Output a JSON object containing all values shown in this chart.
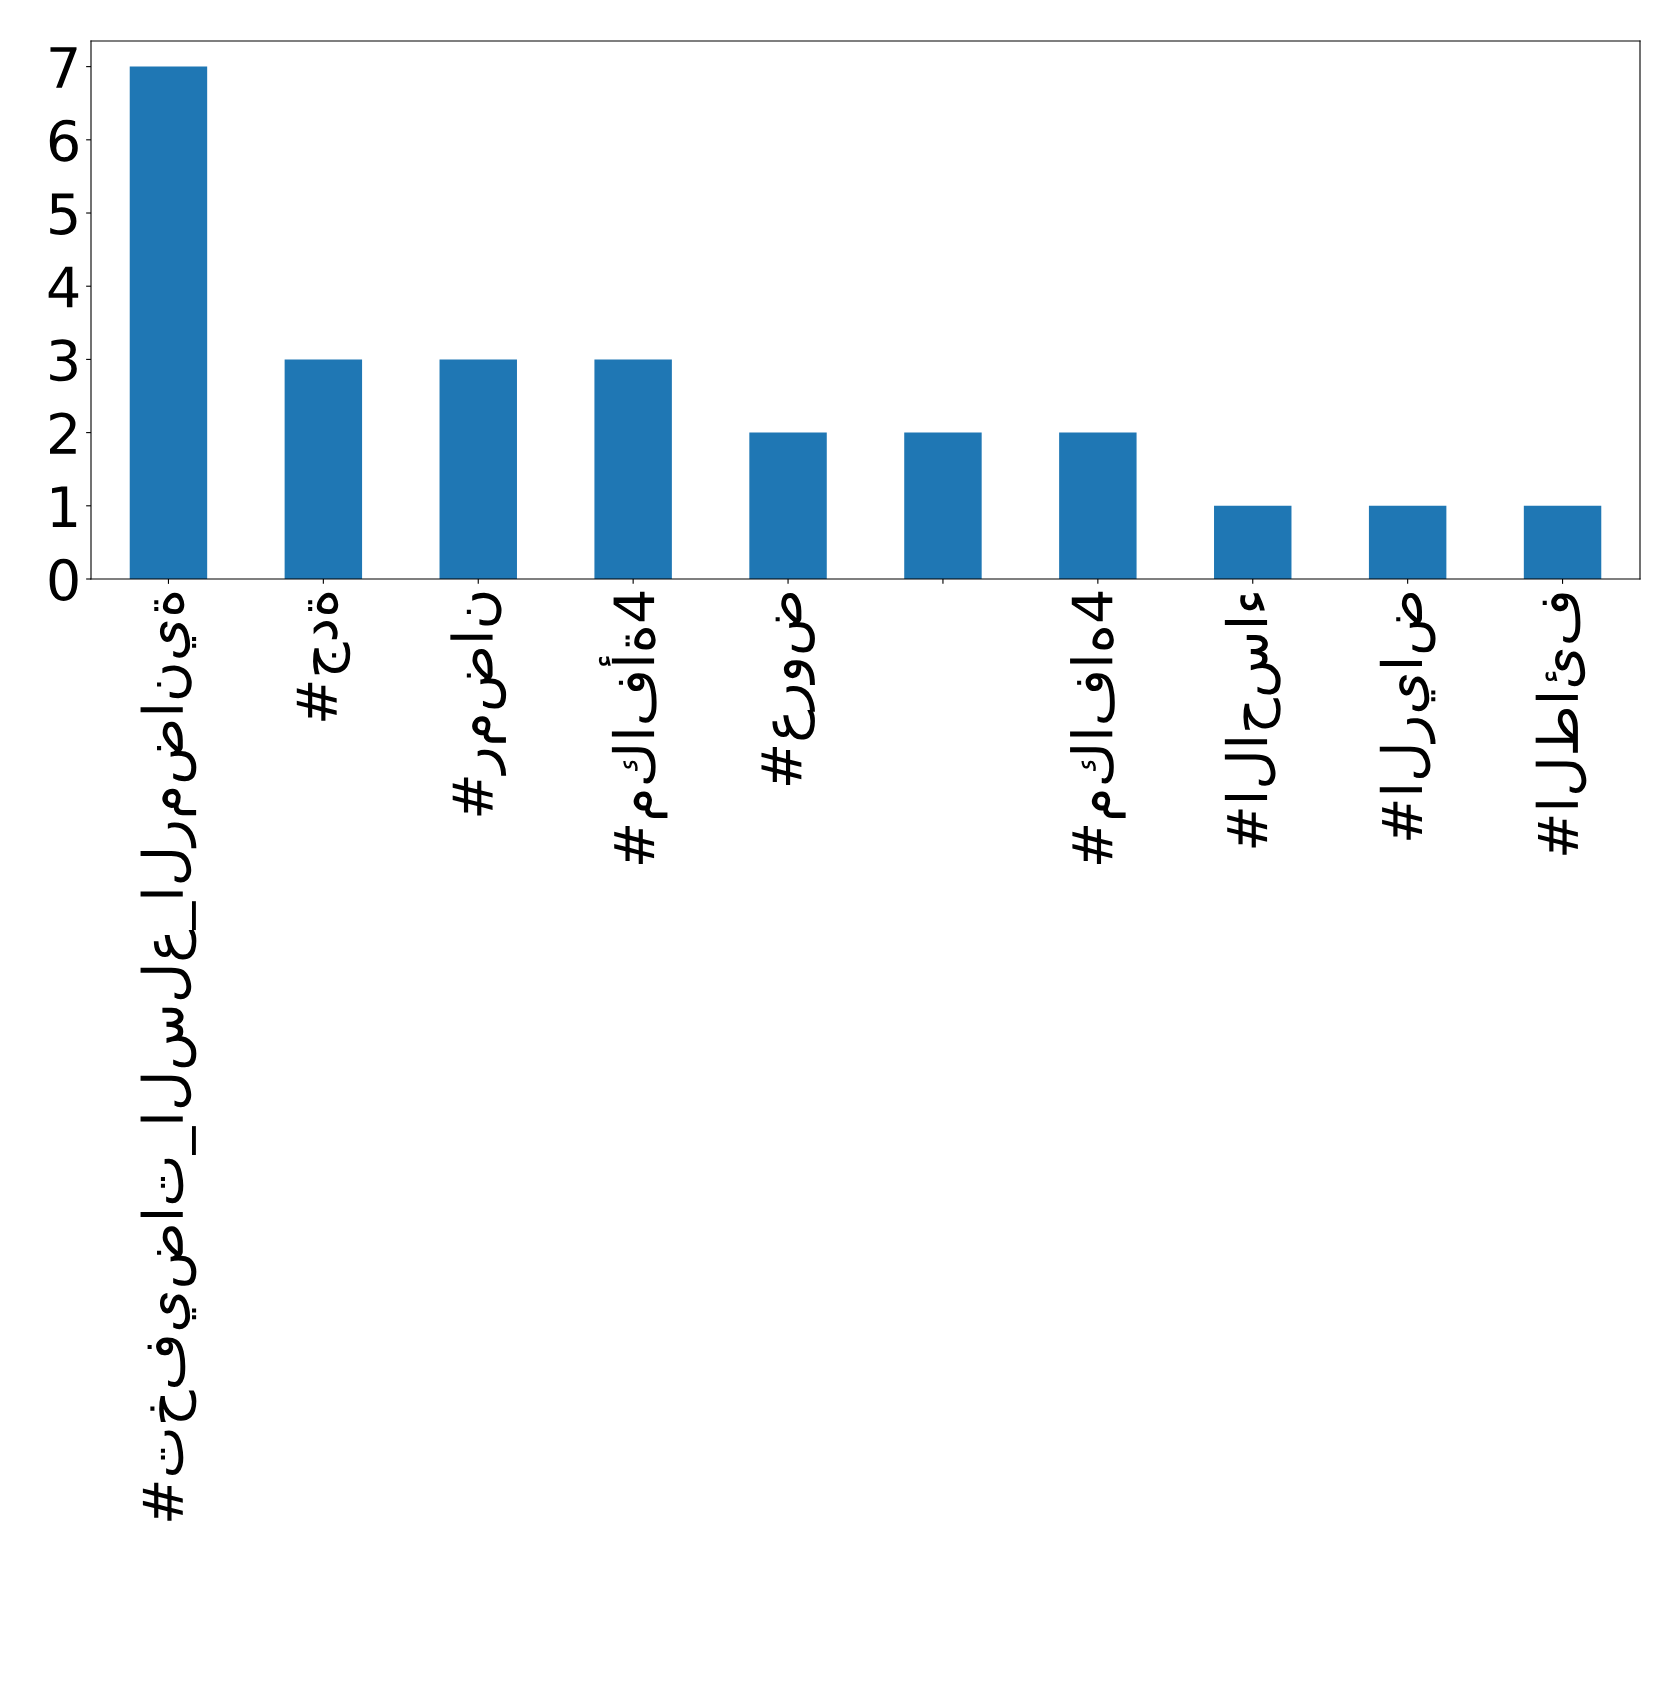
{
  "chart_data": {
    "type": "bar",
    "categories": [
      "#تخفيضات_السلع_الرمضانية",
      "#جدة",
      "#رمضان",
      "#مكافأة4",
      "#عروض",
      null,
      "#مكافاه4",
      "#الاحساء",
      "#الرياض",
      "#الطائف"
    ],
    "values": [
      7,
      3,
      3,
      3,
      2,
      2,
      2,
      1,
      1,
      1
    ],
    "color": "#1f77b4",
    "ylim": [
      0,
      7.35
    ],
    "yticks": [
      0,
      1,
      2,
      3,
      4,
      5,
      6,
      7
    ],
    "grid": false,
    "legend": false
  }
}
